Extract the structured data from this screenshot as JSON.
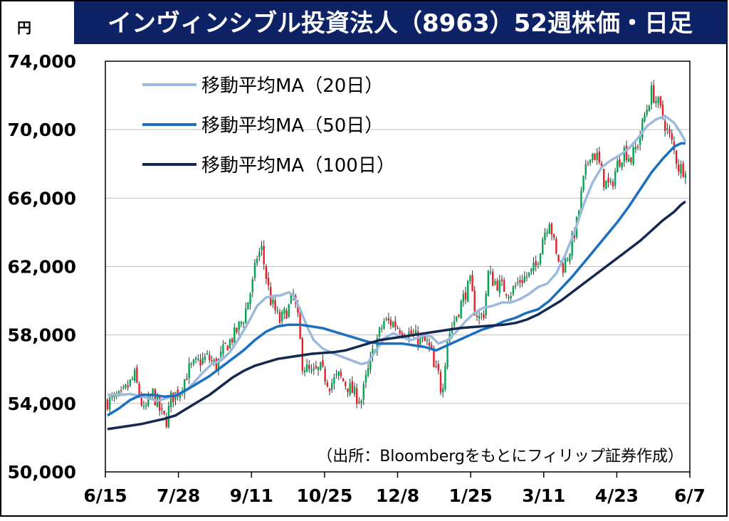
{
  "chart_data": {
    "type": "candlestick-line",
    "title": "インヴィンシブル投資法人（8963）52週株価・日足",
    "unit": "円",
    "source": "（出所：Bloombergをもとにフィリップ証券作成）",
    "ylim": [
      50000,
      74000
    ],
    "y_ticks": [
      {
        "value": 50000,
        "label": "50,000"
      },
      {
        "value": 54000,
        "label": "54,000"
      },
      {
        "value": 58000,
        "label": "58,000"
      },
      {
        "value": 62000,
        "label": "62,000"
      },
      {
        "value": 66000,
        "label": "66,000"
      },
      {
        "value": 70000,
        "label": "70,000"
      },
      {
        "value": 74000,
        "label": "74,000"
      }
    ],
    "x_ticks": [
      "6/15",
      "7/28",
      "9/11",
      "10/25",
      "12/8",
      "1/25",
      "3/11",
      "4/23",
      "6/7"
    ],
    "grid": "horizontal",
    "legend_position": "top-left",
    "colors": {
      "title_bg": "#0e2366",
      "up": "#00a651",
      "down": "#ee1c25",
      "ma20": "#9db9dc",
      "ma50": "#1a6fc0",
      "ma100": "#142850",
      "grid": "#bfbfbf"
    },
    "series": [
      {
        "name": "移動平均MA（20日）",
        "key": "ma20",
        "points": [
          [
            0,
            54500
          ],
          [
            6,
            54500
          ],
          [
            10,
            54550
          ],
          [
            14,
            54450
          ],
          [
            18,
            54300
          ],
          [
            22,
            54150
          ],
          [
            26,
            54300
          ],
          [
            30,
            54500
          ],
          [
            34,
            54700
          ],
          [
            38,
            55200
          ],
          [
            42,
            55800
          ],
          [
            46,
            56300
          ],
          [
            50,
            56500
          ],
          [
            54,
            57000
          ],
          [
            58,
            57800
          ],
          [
            62,
            58700
          ],
          [
            66,
            59700
          ],
          [
            70,
            60200
          ],
          [
            74,
            60300
          ],
          [
            76,
            60300
          ],
          [
            80,
            60500
          ],
          [
            82,
            60300
          ],
          [
            85,
            59500
          ],
          [
            88,
            58500
          ],
          [
            91,
            57700
          ],
          [
            95,
            57200
          ],
          [
            100,
            56900
          ],
          [
            104,
            56700
          ],
          [
            108,
            56500
          ],
          [
            112,
            56300
          ],
          [
            115,
            56400
          ],
          [
            118,
            57000
          ],
          [
            122,
            57800
          ],
          [
            126,
            58100
          ],
          [
            130,
            57900
          ],
          [
            134,
            57700
          ],
          [
            138,
            57900
          ],
          [
            140,
            58000
          ],
          [
            143,
            57900
          ],
          [
            146,
            57500
          ],
          [
            150,
            57700
          ],
          [
            154,
            58200
          ],
          [
            158,
            58800
          ],
          [
            162,
            59300
          ],
          [
            166,
            59600
          ],
          [
            170,
            59700
          ],
          [
            174,
            59900
          ],
          [
            178,
            59900
          ],
          [
            182,
            60100
          ],
          [
            186,
            60400
          ],
          [
            190,
            60800
          ],
          [
            194,
            61000
          ],
          [
            198,
            61600
          ],
          [
            202,
            62700
          ],
          [
            206,
            64000
          ],
          [
            210,
            65600
          ],
          [
            214,
            66900
          ],
          [
            218,
            67800
          ],
          [
            222,
            68200
          ],
          [
            226,
            68500
          ],
          [
            230,
            68900
          ],
          [
            234,
            69500
          ],
          [
            238,
            70200
          ],
          [
            242,
            70600
          ],
          [
            246,
            70800
          ],
          [
            250,
            70400
          ],
          [
            253,
            69800
          ],
          [
            255,
            69300
          ]
        ]
      },
      {
        "name": "移動平均MA（50日）",
        "key": "ma50",
        "points": [
          [
            0,
            53300
          ],
          [
            5,
            53700
          ],
          [
            10,
            54200
          ],
          [
            15,
            54500
          ],
          [
            20,
            54500
          ],
          [
            25,
            54400
          ],
          [
            30,
            54450
          ],
          [
            35,
            54800
          ],
          [
            40,
            55200
          ],
          [
            45,
            55600
          ],
          [
            50,
            56100
          ],
          [
            55,
            56600
          ],
          [
            60,
            57100
          ],
          [
            65,
            57700
          ],
          [
            70,
            58200
          ],
          [
            75,
            58500
          ],
          [
            80,
            58600
          ],
          [
            85,
            58600
          ],
          [
            90,
            58500
          ],
          [
            95,
            58400
          ],
          [
            100,
            58200
          ],
          [
            105,
            58000
          ],
          [
            110,
            57800
          ],
          [
            115,
            57600
          ],
          [
            120,
            57500
          ],
          [
            125,
            57500
          ],
          [
            130,
            57500
          ],
          [
            135,
            57400
          ],
          [
            140,
            57300
          ],
          [
            145,
            57100
          ],
          [
            150,
            57400
          ],
          [
            155,
            57700
          ],
          [
            160,
            58000
          ],
          [
            165,
            58300
          ],
          [
            170,
            58500
          ],
          [
            175,
            58800
          ],
          [
            180,
            59000
          ],
          [
            185,
            59300
          ],
          [
            190,
            59500
          ],
          [
            195,
            60000
          ],
          [
            200,
            60700
          ],
          [
            205,
            61400
          ],
          [
            210,
            62200
          ],
          [
            215,
            63000
          ],
          [
            220,
            63800
          ],
          [
            225,
            64600
          ],
          [
            230,
            65500
          ],
          [
            235,
            66500
          ],
          [
            240,
            67500
          ],
          [
            245,
            68300
          ],
          [
            250,
            69000
          ],
          [
            253,
            69200
          ],
          [
            255,
            69200
          ]
        ]
      },
      {
        "name": "移動平均MA（100日）",
        "key": "ma100",
        "points": [
          [
            0,
            52500
          ],
          [
            5,
            52600
          ],
          [
            10,
            52700
          ],
          [
            15,
            52800
          ],
          [
            20,
            52950
          ],
          [
            25,
            53100
          ],
          [
            30,
            53300
          ],
          [
            35,
            53700
          ],
          [
            40,
            54100
          ],
          [
            45,
            54500
          ],
          [
            50,
            55000
          ],
          [
            55,
            55500
          ],
          [
            60,
            55900
          ],
          [
            65,
            56200
          ],
          [
            70,
            56400
          ],
          [
            75,
            56600
          ],
          [
            80,
            56700
          ],
          [
            85,
            56800
          ],
          [
            90,
            56900
          ],
          [
            95,
            56950
          ],
          [
            100,
            57000
          ],
          [
            105,
            57100
          ],
          [
            110,
            57300
          ],
          [
            115,
            57500
          ],
          [
            120,
            57700
          ],
          [
            125,
            57800
          ],
          [
            130,
            57900
          ],
          [
            135,
            58000
          ],
          [
            140,
            58100
          ],
          [
            145,
            58200
          ],
          [
            150,
            58300
          ],
          [
            155,
            58400
          ],
          [
            160,
            58450
          ],
          [
            165,
            58500
          ],
          [
            170,
            58550
          ],
          [
            175,
            58600
          ],
          [
            180,
            58700
          ],
          [
            185,
            58900
          ],
          [
            190,
            59200
          ],
          [
            195,
            59600
          ],
          [
            200,
            60000
          ],
          [
            205,
            60500
          ],
          [
            210,
            61000
          ],
          [
            215,
            61500
          ],
          [
            220,
            62000
          ],
          [
            225,
            62500
          ],
          [
            230,
            63000
          ],
          [
            235,
            63500
          ],
          [
            240,
            64100
          ],
          [
            245,
            64700
          ],
          [
            250,
            65200
          ],
          [
            253,
            65600
          ],
          [
            255,
            65800
          ]
        ]
      }
    ],
    "price_path": [
      [
        0,
        54100
      ],
      [
        6,
        54400
      ],
      [
        12,
        55600
      ],
      [
        16,
        53500
      ],
      [
        20,
        54600
      ],
      [
        24,
        53300
      ],
      [
        26,
        53000
      ],
      [
        28,
        54300
      ],
      [
        32,
        54800
      ],
      [
        36,
        56000
      ],
      [
        40,
        56400
      ],
      [
        44,
        56700
      ],
      [
        48,
        56200
      ],
      [
        52,
        57300
      ],
      [
        56,
        58000
      ],
      [
        60,
        59000
      ],
      [
        64,
        61000
      ],
      [
        66,
        62600
      ],
      [
        68,
        63000
      ],
      [
        70,
        61400
      ],
      [
        72,
        60000
      ],
      [
        76,
        58800
      ],
      [
        80,
        59600
      ],
      [
        82,
        60300
      ],
      [
        84,
        58900
      ],
      [
        86,
        56300
      ],
      [
        90,
        55700
      ],
      [
        94,
        56000
      ],
      [
        98,
        55100
      ],
      [
        102,
        55600
      ],
      [
        106,
        55000
      ],
      [
        110,
        54400
      ],
      [
        112,
        54200
      ],
      [
        114,
        55400
      ],
      [
        118,
        57400
      ],
      [
        122,
        58800
      ],
      [
        126,
        58700
      ],
      [
        130,
        58300
      ],
      [
        134,
        58000
      ],
      [
        138,
        57700
      ],
      [
        141,
        57500
      ],
      [
        143,
        56900
      ],
      [
        144,
        56000
      ],
      [
        146,
        55700
      ],
      [
        147,
        54900
      ],
      [
        148,
        55300
      ],
      [
        150,
        57800
      ],
      [
        152,
        58500
      ],
      [
        155,
        59500
      ],
      [
        158,
        60500
      ],
      [
        160,
        61000
      ],
      [
        162,
        59500
      ],
      [
        164,
        59000
      ],
      [
        166,
        59300
      ],
      [
        168,
        61600
      ],
      [
        170,
        61200
      ],
      [
        174,
        60800
      ],
      [
        178,
        60500
      ],
      [
        182,
        61200
      ],
      [
        186,
        61500
      ],
      [
        189,
        62000
      ],
      [
        192,
        63700
      ],
      [
        195,
        64800
      ],
      [
        198,
        62600
      ],
      [
        201,
        62000
      ],
      [
        204,
        63000
      ],
      [
        207,
        64500
      ],
      [
        210,
        67000
      ],
      [
        213,
        68700
      ],
      [
        216,
        68400
      ],
      [
        219,
        67000
      ],
      [
        222,
        66600
      ],
      [
        225,
        68000
      ],
      [
        228,
        68800
      ],
      [
        231,
        68300
      ],
      [
        234,
        69200
      ],
      [
        237,
        70800
      ],
      [
        240,
        72200
      ],
      [
        243,
        71500
      ],
      [
        246,
        70300
      ],
      [
        249,
        69200
      ],
      [
        252,
        67800
      ],
      [
        254,
        67700
      ],
      [
        256,
        68000
      ]
    ]
  }
}
